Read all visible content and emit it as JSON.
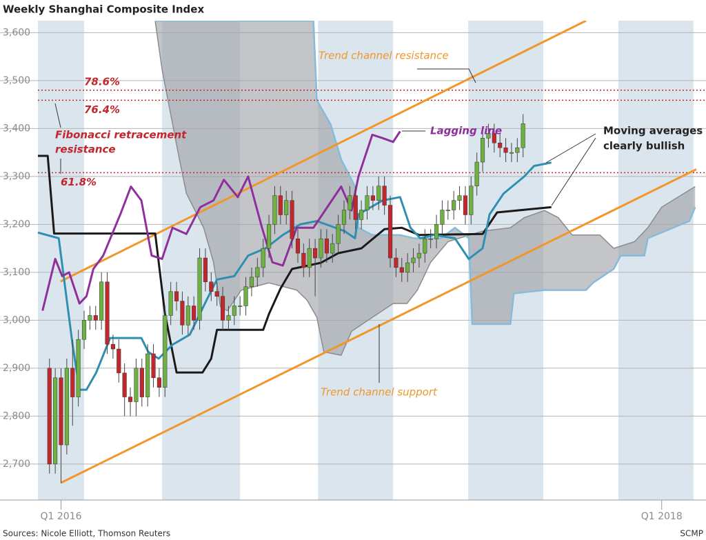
{
  "chart_data": {
    "type": "candlestick",
    "title": "Weekly Shanghai Composite Index",
    "source": "Sources: Nicole Elliott, Thomson Reuters",
    "credit": "SCMP",
    "xlim": [
      -4,
      110
    ],
    "xticks": [
      {
        "value": 0,
        "label": "Q1 2016"
      },
      {
        "value": 104,
        "label": "Q1 2018"
      }
    ],
    "ylim": [
      2625,
      3625
    ],
    "yticks": [
      {
        "value": 2700,
        "label": "2,700"
      },
      {
        "value": 2800,
        "label": "2,800"
      },
      {
        "value": 2900,
        "label": "2,900"
      },
      {
        "value": 3000,
        "label": "3,000"
      },
      {
        "value": 3100,
        "label": "3,100"
      },
      {
        "value": 3200,
        "label": "3,200"
      },
      {
        "value": 3300,
        "label": "3,300"
      },
      {
        "value": 3400,
        "label": "3,400"
      },
      {
        "value": 3500,
        "label": "3,500"
      },
      {
        "value": 3600,
        "label": "3,600"
      }
    ],
    "grid": true,
    "shaded_periods": [
      [
        -4,
        4
      ],
      [
        17.5,
        31
      ],
      [
        44.5,
        57.5
      ],
      [
        70.5,
        83.5
      ],
      [
        96.5,
        109.5
      ]
    ],
    "shade_color": "#dbe5ee",
    "candles": {
      "up_color": "#6fb043",
      "down_color": "#c1272d",
      "x": [
        -2,
        -1,
        0,
        1,
        2,
        3,
        4,
        5,
        6,
        7,
        8,
        9,
        10,
        11,
        12,
        13,
        14,
        15,
        16,
        17,
        18,
        19,
        20,
        21,
        22,
        23,
        24,
        25,
        26,
        27,
        28,
        29,
        30,
        31,
        32,
        33,
        34,
        35,
        36,
        37,
        38,
        39,
        40,
        41,
        42,
        43,
        44,
        45,
        46,
        47,
        48,
        49,
        50,
        51,
        52,
        53,
        54,
        55,
        56,
        57,
        58,
        59,
        60,
        61,
        62,
        63,
        64,
        65,
        66,
        67,
        68,
        69,
        70,
        71,
        72,
        73,
        74,
        75,
        76,
        77,
        78,
        79,
        80
      ],
      "open": [
        2900,
        2700,
        2880,
        2740,
        2900,
        2840,
        2960,
        3000,
        3010,
        3000,
        3080,
        2950,
        2940,
        2890,
        2840,
        2830,
        2900,
        2840,
        2930,
        2880,
        2860,
        3010,
        3060,
        3040,
        2990,
        3030,
        3000,
        3130,
        3080,
        3060,
        3050,
        3000,
        3010,
        3030,
        3030,
        3070,
        3090,
        3110,
        3150,
        3200,
        3260,
        3220,
        3250,
        3170,
        3140,
        3110,
        3150,
        3130,
        3170,
        3140,
        3160,
        3200,
        3230,
        3260,
        3210,
        3230,
        3260,
        3250,
        3280,
        3240,
        3130,
        3110,
        3100,
        3120,
        3130,
        3140,
        3170,
        3170,
        3200,
        3230,
        3230,
        3250,
        3260,
        3220,
        3280,
        3330,
        3380,
        3390,
        3370,
        3360,
        3350,
        3350,
        3360
      ],
      "high": [
        2920,
        2900,
        2900,
        2920,
        2960,
        2980,
        3020,
        3030,
        3030,
        3100,
        3100,
        2970,
        2960,
        2910,
        2860,
        2920,
        2920,
        2950,
        2950,
        2900,
        3030,
        3080,
        3080,
        3060,
        3050,
        3050,
        3150,
        3150,
        3100,
        3080,
        3070,
        3030,
        3050,
        3050,
        3090,
        3110,
        3130,
        3170,
        3220,
        3280,
        3280,
        3270,
        3270,
        3190,
        3160,
        3170,
        3170,
        3190,
        3190,
        3180,
        3220,
        3250,
        3280,
        3280,
        3250,
        3280,
        3280,
        3300,
        3300,
        3260,
        3150,
        3130,
        3140,
        3150,
        3160,
        3190,
        3190,
        3220,
        3250,
        3250,
        3270,
        3280,
        3280,
        3300,
        3350,
        3400,
        3410,
        3410,
        3390,
        3380,
        3370,
        3380,
        3430
      ],
      "low": [
        2680,
        2680,
        2660,
        2720,
        2780,
        2820,
        2940,
        2980,
        2980,
        2980,
        2930,
        2920,
        2870,
        2800,
        2800,
        2800,
        2820,
        2820,
        2860,
        2840,
        2840,
        2990,
        3020,
        2970,
        2970,
        2980,
        2980,
        3060,
        3040,
        3030,
        2980,
        2980,
        2990,
        3010,
        3010,
        3050,
        3070,
        3090,
        3130,
        3180,
        3200,
        3200,
        3150,
        3120,
        3090,
        3090,
        3050,
        3110,
        3120,
        3120,
        3140,
        3180,
        3210,
        3190,
        3190,
        3210,
        3230,
        3230,
        3220,
        3110,
        3090,
        3080,
        3080,
        3100,
        3110,
        3120,
        3150,
        3150,
        3180,
        3210,
        3210,
        3230,
        3200,
        3200,
        3260,
        3310,
        3360,
        3350,
        3340,
        3330,
        3330,
        3330,
        3340
      ],
      "close": [
        2700,
        2880,
        2740,
        2900,
        2840,
        2960,
        3000,
        3010,
        3000,
        3080,
        2950,
        2940,
        2890,
        2840,
        2830,
        2900,
        2840,
        2930,
        2880,
        2860,
        3010,
        3060,
        3040,
        2990,
        3030,
        3000,
        3130,
        3080,
        3060,
        3050,
        3000,
        3010,
        3030,
        3030,
        3070,
        3090,
        3110,
        3150,
        3200,
        3260,
        3220,
        3250,
        3170,
        3140,
        3110,
        3150,
        3130,
        3170,
        3140,
        3160,
        3200,
        3230,
        3260,
        3210,
        3230,
        3260,
        3250,
        3280,
        3240,
        3130,
        3110,
        3100,
        3120,
        3130,
        3140,
        3170,
        3170,
        3200,
        3230,
        3230,
        3250,
        3260,
        3220,
        3280,
        3330,
        3380,
        3390,
        3370,
        3360,
        3350,
        3350,
        3360,
        3410
      ]
    },
    "cloud": {
      "color": "#9c9fa3",
      "span_a": {
        "color": "#86bcd9",
        "x": [
          16.3,
          43.7,
          44.3,
          46.7,
          48.5,
          50.9,
          51.5,
          53.9,
          58.7,
          61.1,
          65.8,
          68.2,
          70.6,
          71.2,
          77.8,
          78.4,
          83.7,
          90.9,
          92.1,
          95.7,
          96.9,
          101,
          101.6,
          108.8,
          109.8
        ],
        "values": [
          3625,
          3625,
          3459,
          3408,
          3336,
          3279,
          3193,
          3178,
          3178,
          3171,
          3171,
          3193,
          3171,
          2992,
          2992,
          3056,
          3063,
          3063,
          3078,
          3107,
          3135,
          3135,
          3171,
          3207,
          3236
        ]
      },
      "span_b": {
        "color": "#8c8c8c",
        "x": [
          16.3,
          17.5,
          20.5,
          21.7,
          24.7,
          26.4,
          27.6,
          28.8,
          31.2,
          36,
          40.8,
          42.6,
          44.3,
          45.5,
          48.5,
          50.3,
          53.9,
          57.5,
          59.9,
          61.7,
          64,
          67,
          73,
          77.8,
          80.2,
          83.7,
          86.1,
          88.5,
          93.3,
          95.7,
          99.3,
          101.6,
          104,
          109.8
        ],
        "values": [
          3624,
          3523,
          3336,
          3265,
          3193,
          3121,
          3028,
          3020,
          3063,
          3078,
          3063,
          3042,
          3006,
          2934,
          2927,
          2977,
          3006,
          3035,
          3035,
          3063,
          3121,
          3164,
          3186,
          3193,
          3214,
          3229,
          3214,
          3178,
          3178,
          3150,
          3164,
          3193,
          3236,
          3279
        ]
      }
    },
    "lines": [
      {
        "color": "#f0962a",
        "x": [
          -0.1,
          90.9
        ],
        "values": [
          3081,
          3625
        ]
      },
      {
        "color": "#f0962a",
        "x": [
          0,
          110
        ],
        "values": [
          2661,
          3315
        ]
      },
      {
        "color": "#1a1a1a",
        "x": [
          -4,
          -2.3,
          -1.2,
          16.3,
          18,
          20,
          24.5,
          26,
          27,
          35,
          36,
          38,
          40,
          45,
          48,
          52,
          56,
          59,
          62,
          73,
          75.5,
          84.9
        ],
        "values": [
          3343,
          3343,
          3181,
          3181,
          3013,
          2891,
          2891,
          2920,
          2980,
          2980,
          3013,
          3066,
          3107,
          3120,
          3140,
          3150,
          3190,
          3193,
          3178,
          3180,
          3225,
          3236
        ]
      },
      {
        "color": "#2f8fb0",
        "x": [
          -4,
          -0.4,
          2,
          3.2,
          4.4,
          6.1,
          8.5,
          13.9,
          15.1,
          16.9,
          19.3,
          22.3,
          25.2,
          27,
          30,
          32.4,
          35.4,
          38.4,
          41.4,
          44.3,
          49.1,
          50.9,
          51.5,
          55.7,
          58.7,
          60.5,
          62.2,
          64.6,
          68.2,
          70.6,
          73,
          74.2,
          76.6,
          80.2,
          81.9,
          84.9
        ],
        "values": [
          3183,
          3171,
          2949,
          2855,
          2855,
          2891,
          2963,
          2963,
          2934,
          2920,
          2949,
          2970,
          3042,
          3085,
          3092,
          3135,
          3150,
          3178,
          3200,
          3207,
          3186,
          3171,
          3221,
          3250,
          3257,
          3193,
          3171,
          3178,
          3171,
          3128,
          3150,
          3221,
          3264,
          3300,
          3322,
          3329
        ]
      },
      {
        "color": "#8e2f9c",
        "x": [
          -3.2,
          -1,
          0.2,
          1.4,
          3.2,
          4.4,
          5.6,
          7.3,
          10.3,
          12.1,
          13.9,
          15.7,
          17.5,
          19.3,
          21.7,
          24.1,
          26.4,
          28.2,
          30.6,
          32.4,
          34.8,
          36.6,
          38.4,
          40.8,
          43.7,
          46.1,
          48.5,
          50.3,
          51.5,
          53.9,
          55.7,
          57.5,
          58.7
        ],
        "values": [
          3020,
          3128,
          3092,
          3100,
          3035,
          3050,
          3107,
          3135,
          3222,
          3279,
          3250,
          3135,
          3128,
          3193,
          3180,
          3236,
          3250,
          3293,
          3257,
          3300,
          3193,
          3121,
          3114,
          3193,
          3193,
          3236,
          3279,
          3229,
          3300,
          3387,
          3380,
          3372,
          3394
        ]
      }
    ],
    "fibonacci": {
      "color": "#c1272d",
      "levels": [
        {
          "label": "78.6%",
          "value": 3480
        },
        {
          "label": "76.4%",
          "value": 3459
        },
        {
          "label": "61.8%",
          "value": 3308
        }
      ]
    },
    "annotations": {
      "fibonacci": [
        "Fibonacci retracement",
        "resistance"
      ],
      "resistance": "Trend channel resistance",
      "support": "Trend channel support",
      "lagging": "Lagging line",
      "moving_averages": [
        "Moving averages",
        "clearly bullish"
      ]
    }
  }
}
